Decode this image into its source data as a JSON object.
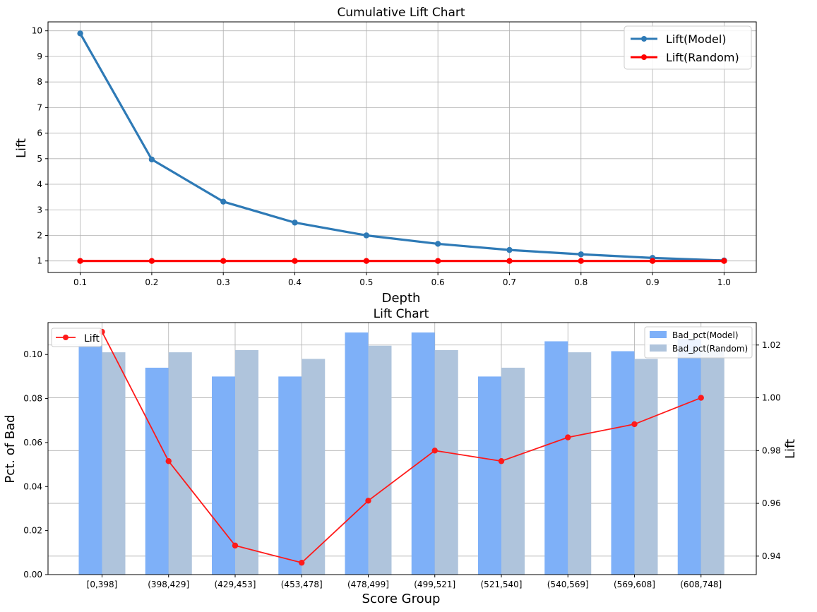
{
  "chart_data": [
    {
      "type": "line",
      "title": "Cumulative Lift Chart",
      "xlabel": "Depth",
      "ylabel": "Lift",
      "x": [
        0.1,
        0.2,
        0.3,
        0.4,
        0.5,
        0.6,
        0.7,
        0.8,
        0.9,
        1.0
      ],
      "x_tick_labels": [
        "0.1",
        "0.2",
        "0.3",
        "0.4",
        "0.5",
        "0.6",
        "0.7",
        "0.8",
        "0.9",
        "1.0"
      ],
      "xlim": [
        0.055,
        1.045
      ],
      "ylim": [
        0.55,
        10.35
      ],
      "y_ticks": [
        1,
        2,
        3,
        4,
        5,
        6,
        7,
        8,
        9,
        10
      ],
      "grid": true,
      "legend_position": "top-right",
      "series": [
        {
          "name": "Lift(Model)",
          "color": "#2e7ab6",
          "values": [
            9.9,
            4.97,
            3.32,
            2.5,
            2.0,
            1.67,
            1.43,
            1.26,
            1.12,
            1.02
          ]
        },
        {
          "name": "Lift(Random)",
          "color": "#ff0000",
          "values": [
            1,
            1,
            1,
            1,
            1,
            1,
            1,
            1,
            1,
            1
          ]
        }
      ]
    },
    {
      "type": "bar",
      "title": "Lift Chart",
      "xlabel": "Score Group",
      "ylabel": "Pct. of Bad",
      "y2label": "Lift",
      "categories": [
        "[0,398]",
        "(398,429]",
        "(429,453]",
        "(453,478]",
        "(478,499]",
        "(499,521]",
        "(521,540]",
        "(540,569]",
        "(569,608]",
        "(608,748]"
      ],
      "ylim": [
        0,
        0.1145
      ],
      "y_ticks": [
        0.0,
        0.02,
        0.04,
        0.06,
        0.08,
        0.1
      ],
      "y_tick_labels": [
        "0.00",
        "0.02",
        "0.04",
        "0.06",
        "0.08",
        "0.10"
      ],
      "y2lim": [
        0.933,
        1.0285
      ],
      "y2_ticks": [
        0.94,
        0.96,
        0.98,
        1.0,
        1.02
      ],
      "y2_tick_labels": [
        "0.94",
        "0.96",
        "0.98",
        "1.00",
        "1.02"
      ],
      "grid": true,
      "series": [
        {
          "name": "Bad_pct(Model)",
          "color": "#7eb0f8",
          "values": [
            0.104,
            0.094,
            0.09,
            0.09,
            0.11,
            0.11,
            0.09,
            0.106,
            0.1015,
            0.107
          ]
        },
        {
          "name": "Bad_pct(Random)",
          "color": "#afc4dc",
          "values": [
            0.101,
            0.101,
            0.102,
            0.098,
            0.104,
            0.102,
            0.094,
            0.101,
            0.098,
            0.102
          ]
        }
      ],
      "line_series": {
        "name": "Lift",
        "color": "#ff1a1a",
        "axis": "right",
        "values": [
          1.025,
          0.976,
          0.944,
          0.9375,
          0.961,
          0.98,
          0.976,
          0.985,
          0.99,
          1.0
        ]
      },
      "legend_bars_position": "top-right",
      "legend_line_position": "top-left"
    }
  ]
}
